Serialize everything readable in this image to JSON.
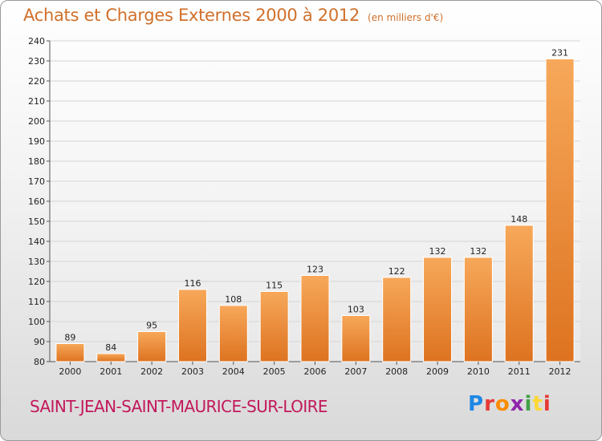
{
  "header": {
    "title": "Achats et Charges Externes 2000 à 2012",
    "unit": "(en milliers d'€)"
  },
  "footer": {
    "commune": "SAINT-JEAN-SAINT-MAURICE-SUR-LOIRE",
    "logo": "Proxiti"
  },
  "colors": {
    "bar_top": "#f7a85a",
    "bar_bottom": "#dd7320",
    "title": "#d0702a",
    "commune": "#c2185b"
  },
  "chart_data": {
    "type": "bar",
    "title": "Achats et Charges Externes 2000 à 2012",
    "subtitle": "(en milliers d'€)",
    "xlabel": "",
    "ylabel": "",
    "categories": [
      "2000",
      "2001",
      "2002",
      "2003",
      "2004",
      "2005",
      "2006",
      "2007",
      "2008",
      "2009",
      "2010",
      "2011",
      "2012"
    ],
    "values": [
      89,
      84,
      95,
      116,
      108,
      115,
      123,
      103,
      122,
      132,
      132,
      148,
      231
    ],
    "ylim": [
      80,
      240
    ],
    "yticks": [
      80,
      90,
      100,
      110,
      120,
      130,
      140,
      150,
      160,
      170,
      180,
      190,
      200,
      210,
      220,
      230,
      240
    ],
    "grid": true,
    "legend": "none"
  }
}
